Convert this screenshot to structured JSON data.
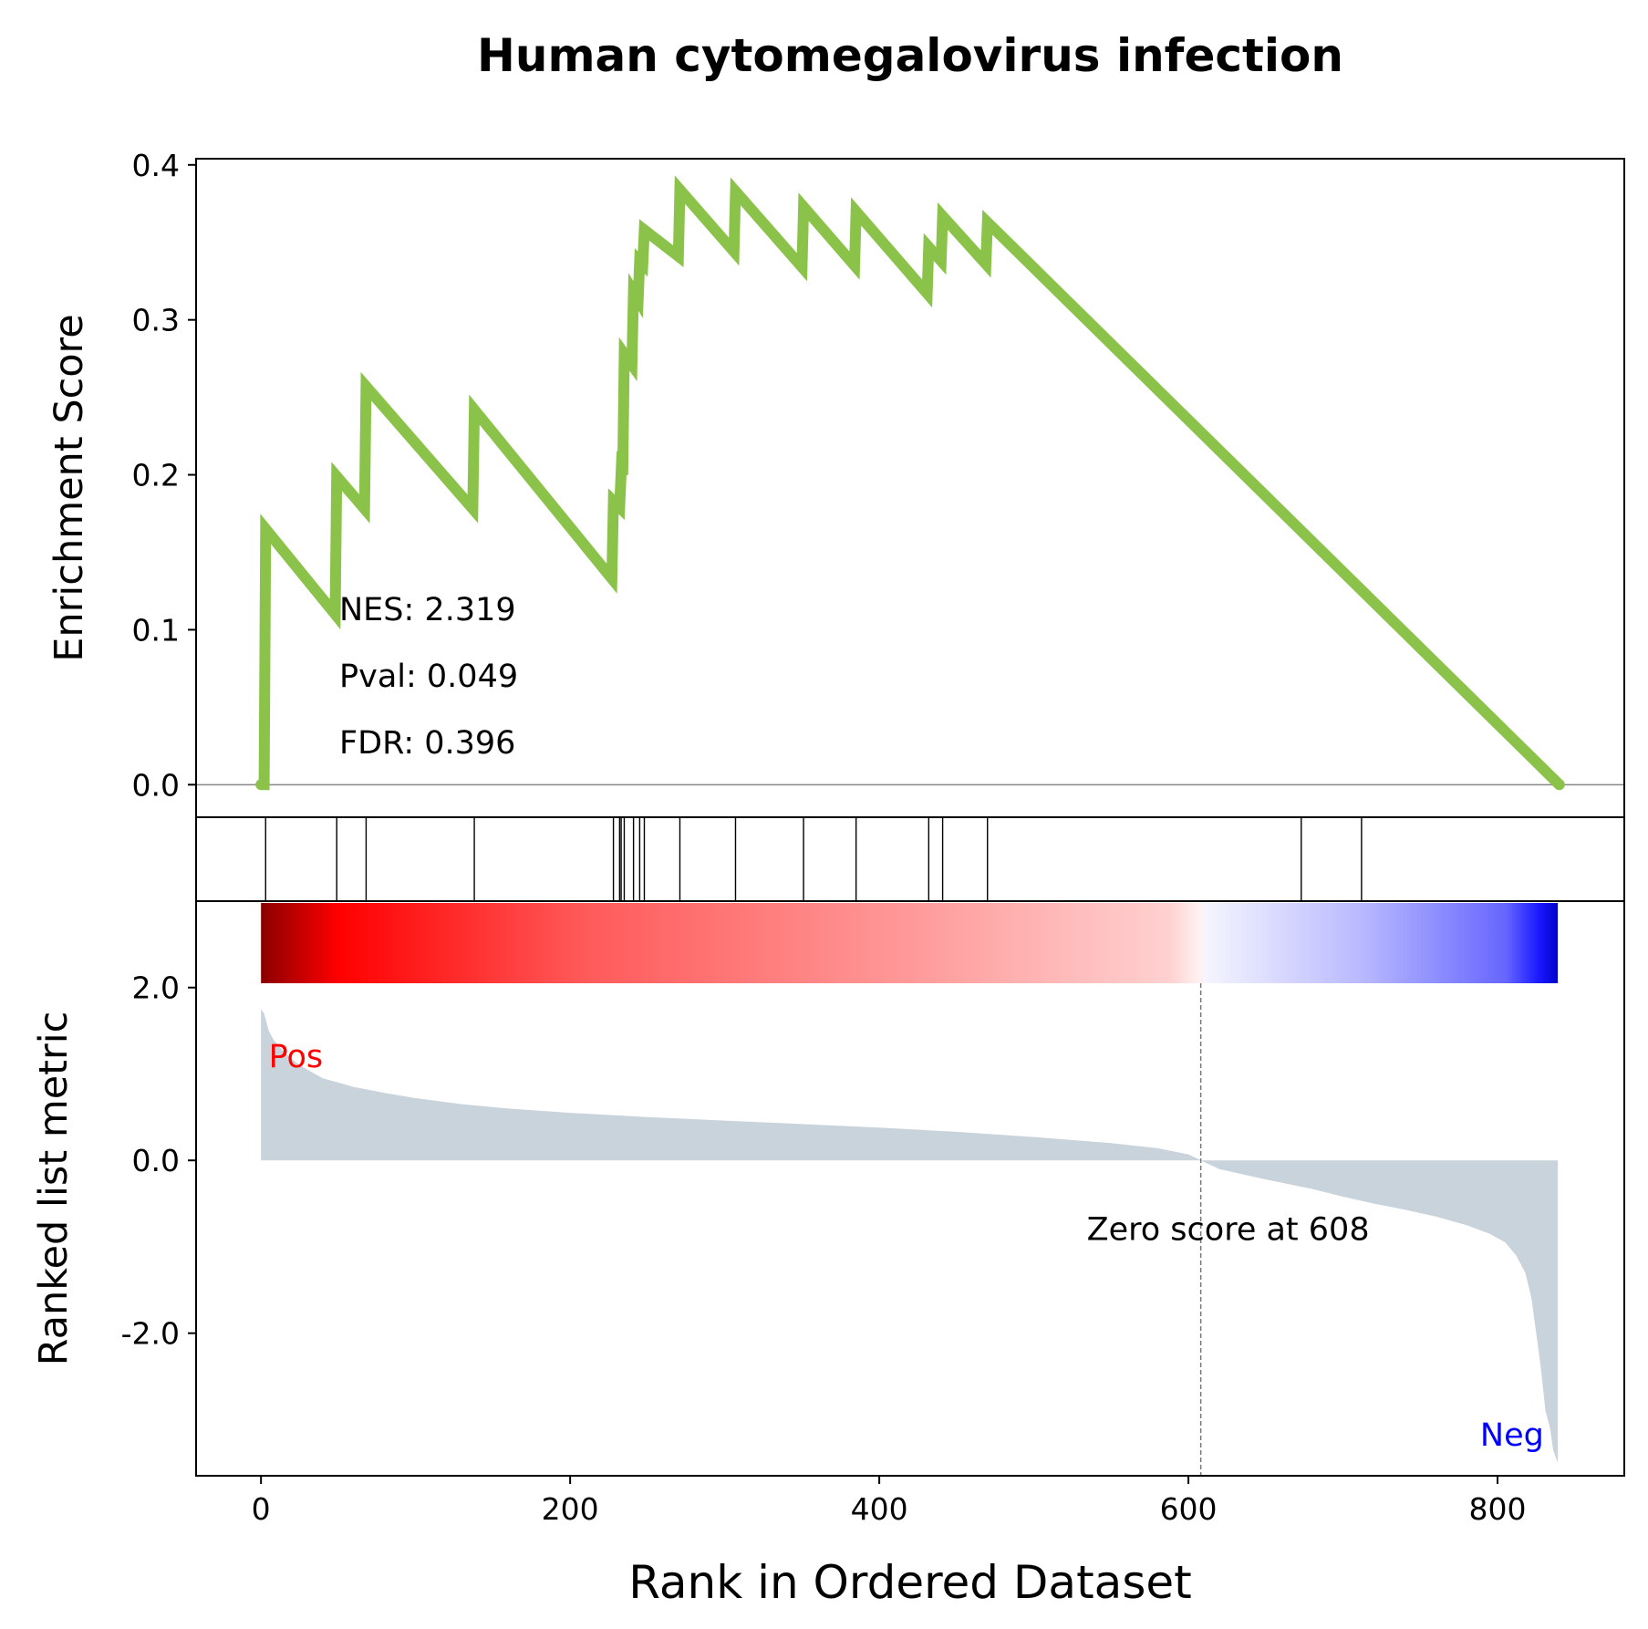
{
  "chart_data": {
    "type": "line",
    "title": "Human cytomegalovirus infection",
    "xlabel": "Rank in Ordered Dataset",
    "xlim": [
      -42,
      882
    ],
    "xticks": [
      0,
      200,
      400,
      600,
      800
    ],
    "n_genes": 840,
    "es_panel": {
      "ylabel": "Enrichment Score",
      "ylim": [
        -0.021,
        0.404
      ],
      "yticks": [
        0.0,
        0.1,
        0.2,
        0.3,
        0.4
      ],
      "ytick_labels": [
        "0.0",
        "0.1",
        "0.2",
        "0.3",
        "0.4"
      ],
      "line_color": "#8bc34a",
      "zero_line": true,
      "series": [
        {
          "x": [
            0,
            2,
            3,
            48,
            49,
            67,
            68,
            137,
            138,
            227,
            228,
            232,
            233,
            234,
            235,
            240,
            241,
            244,
            245,
            247,
            248,
            270,
            271,
            306,
            307,
            350,
            351,
            384,
            385,
            431,
            432,
            440,
            441,
            469,
            470,
            840
          ],
          "y": [
            0.0,
            0.0,
            0.165,
            0.11,
            0.199,
            0.178,
            0.257,
            0.178,
            0.242,
            0.133,
            0.183,
            0.179,
            0.202,
            0.2,
            0.278,
            0.271,
            0.318,
            0.313,
            0.338,
            0.336,
            0.358,
            0.341,
            0.384,
            0.344,
            0.383,
            0.334,
            0.373,
            0.335,
            0.37,
            0.317,
            0.347,
            0.338,
            0.367,
            0.336,
            0.363,
            0.0
          ]
        }
      ],
      "annotations": [
        "NES: 2.319",
        "Pval: 0.049",
        "FDR: 0.396"
      ]
    },
    "hits_panel": {
      "hit_ranks": [
        3,
        49,
        68,
        138,
        228,
        232,
        233,
        235,
        241,
        245,
        248,
        271,
        307,
        351,
        385,
        432,
        441,
        470,
        673,
        712
      ]
    },
    "metric_panel": {
      "ylabel": "Ranked list metric",
      "ylim": [
        -3.65,
        3.0
      ],
      "yticks": [
        2.0,
        0.0,
        -2.0
      ],
      "ytick_labels": [
        "2.0",
        "0.0",
        "-2.0"
      ],
      "fill_color": "#c9d3dc",
      "zero_cross": 608,
      "zero_label": "Zero score at 608",
      "pos_label": "Pos",
      "neg_label": "Neg",
      "pos_color": "#ff0000",
      "neg_color": "#0000ff",
      "curve": {
        "x": [
          0,
          2,
          5,
          8,
          15,
          25,
          40,
          60,
          80,
          100,
          130,
          160,
          200,
          250,
          300,
          350,
          400,
          450,
          500,
          550,
          580,
          600,
          608,
          620,
          650,
          680,
          700,
          720,
          740,
          760,
          780,
          795,
          805,
          812,
          818,
          822,
          825,
          828,
          831,
          834,
          836,
          838,
          839
        ],
        "y": [
          1.75,
          1.7,
          1.5,
          1.4,
          1.25,
          1.1,
          0.95,
          0.85,
          0.78,
          0.72,
          0.65,
          0.6,
          0.55,
          0.5,
          0.46,
          0.42,
          0.38,
          0.33,
          0.27,
          0.2,
          0.14,
          0.07,
          0.0,
          -0.1,
          -0.22,
          -0.33,
          -0.42,
          -0.5,
          -0.57,
          -0.65,
          -0.75,
          -0.85,
          -0.95,
          -1.1,
          -1.3,
          -1.6,
          -2.0,
          -2.4,
          -2.9,
          -3.1,
          -3.35,
          -3.45,
          -3.5
        ]
      },
      "colorbar_stops": [
        {
          "pos": 0.0,
          "color": "#8b0000"
        },
        {
          "pos": 0.06,
          "color": "#ff0000"
        },
        {
          "pos": 0.25,
          "color": "#ff5a5a"
        },
        {
          "pos": 0.5,
          "color": "#ff9999"
        },
        {
          "pos": 0.7,
          "color": "#ffd0d0"
        },
        {
          "pos": 0.724,
          "color": "#fff2f2"
        },
        {
          "pos": 0.73,
          "color": "#f4f4ff"
        },
        {
          "pos": 0.85,
          "color": "#b8b8ff"
        },
        {
          "pos": 0.96,
          "color": "#6666ff"
        },
        {
          "pos": 0.985,
          "color": "#1a1aff"
        },
        {
          "pos": 1.0,
          "color": "#0000cc"
        }
      ]
    }
  }
}
